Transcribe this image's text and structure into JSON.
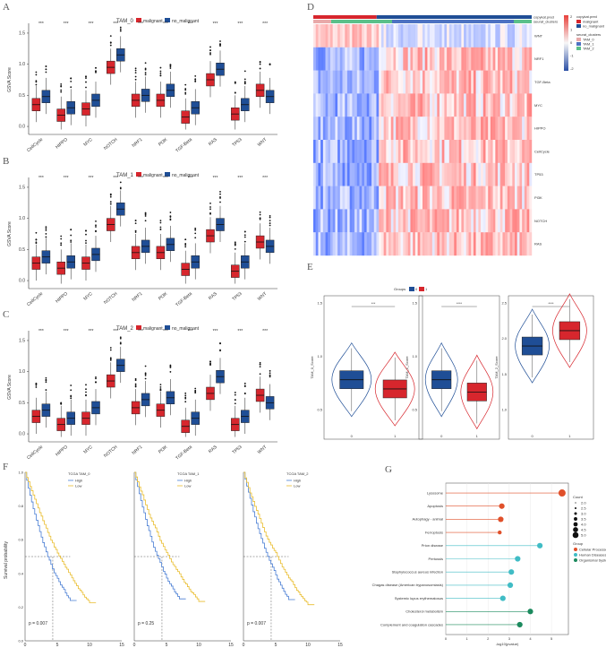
{
  "panels": {
    "A": {
      "letter": "A"
    },
    "B": {
      "letter": "B"
    },
    "C": {
      "letter": "C"
    },
    "D": {
      "letter": "D"
    },
    "E": {
      "letter": "E"
    },
    "F": {
      "letter": "F"
    },
    "G": {
      "letter": "G"
    }
  },
  "colors": {
    "malignant": "#d7262d",
    "no_malignant": "#1f4e96",
    "high": "#4a7ed4",
    "low": "#e9bd2f",
    "cellular": "#e0502a",
    "human_disease": "#40bcc5",
    "organismal": "#1c8a5e"
  },
  "chart_data": [
    {
      "type": "box",
      "id": "A",
      "legend_title": "TAM_0",
      "ylabel": "GSVA Score",
      "ylim": [
        -0.1,
        1.6
      ],
      "yticks": [
        "0.0",
        "0.5",
        "1.0",
        "1.5"
      ],
      "series": [
        {
          "name": "malignant"
        },
        {
          "name": "no_malignant"
        }
      ],
      "categories": [
        "CellCycle",
        "HIPPO",
        "MYC",
        "NOTCH",
        "NRF1",
        "PI3K",
        "TGF-Beta",
        "RAS",
        "TP53",
        "WNT"
      ],
      "signif": "***",
      "medians_malignant": [
        0.35,
        0.18,
        0.28,
        0.95,
        0.42,
        0.42,
        0.15,
        0.75,
        0.2,
        0.58
      ],
      "medians_no_malignant": [
        0.48,
        0.3,
        0.42,
        1.15,
        0.5,
        0.58,
        0.3,
        0.92,
        0.35,
        0.48
      ]
    },
    {
      "type": "box",
      "id": "B",
      "legend_title": "TAM_1",
      "ylabel": "GSVA Score",
      "ylim": [
        -0.1,
        1.6
      ],
      "yticks": [
        "0.0",
        "0.5",
        "1.0",
        "1.5"
      ],
      "series": [
        {
          "name": "malignant"
        },
        {
          "name": "no_malignant"
        }
      ],
      "categories": [
        "CellCycle",
        "HIPPO",
        "MYC",
        "NOTCH",
        "NRF1",
        "PI3K",
        "TGF-Beta",
        "RAS",
        "TP53",
        "WNT"
      ],
      "signif": "***",
      "medians_malignant": [
        0.28,
        0.2,
        0.28,
        0.9,
        0.45,
        0.45,
        0.18,
        0.72,
        0.15,
        0.62
      ],
      "medians_no_malignant": [
        0.38,
        0.3,
        0.42,
        1.15,
        0.55,
        0.58,
        0.3,
        0.9,
        0.3,
        0.55
      ]
    },
    {
      "type": "box",
      "id": "C",
      "legend_title": "TAM_2",
      "ylabel": "GSVA Score",
      "ylim": [
        -0.1,
        1.6
      ],
      "yticks": [
        "0.0",
        "0.5",
        "1.0",
        "1.5"
      ],
      "series": [
        {
          "name": "malignant"
        },
        {
          "name": "no_malignant"
        }
      ],
      "categories": [
        "CellCycle",
        "HIPPO",
        "MYC",
        "NOTCH",
        "NRF1",
        "PI3K",
        "TGF-Beta",
        "RAS",
        "TP53",
        "WNT"
      ],
      "signif": "***",
      "medians_malignant": [
        0.28,
        0.15,
        0.25,
        0.85,
        0.42,
        0.38,
        0.12,
        0.65,
        0.15,
        0.62
      ],
      "medians_no_malignant": [
        0.38,
        0.25,
        0.42,
        1.1,
        0.55,
        0.58,
        0.25,
        0.92,
        0.28,
        0.5
      ]
    },
    {
      "type": "heatmap",
      "id": "D",
      "rows": [
        "WNT",
        "NRF1",
        "TGF-Beta",
        "MYC",
        "HIPPO",
        "CellCycle",
        "TP53",
        "PI3K",
        "NOTCH",
        "RAS"
      ],
      "annotations": [
        "copykat.pred",
        "seurat_clusters"
      ],
      "legend": {
        "scale_title": "",
        "scale_ticks": [
          "2",
          "1",
          "0",
          "-1",
          "-2"
        ],
        "copykat_title": "copykat.pred",
        "copykat_items": [
          "malignant",
          "no_malignant"
        ],
        "cluster_title": "seurat_clusters",
        "cluster_items": [
          "TAM_0",
          "TAM_1",
          "TAM_2"
        ]
      }
    },
    {
      "type": "violin",
      "id": "E",
      "legend_title": "Groups",
      "groups": [
        "0",
        "1"
      ],
      "plots": [
        {
          "ylabel": "TAM_0_Score",
          "signif": "***",
          "yticks": [
            "1.5",
            "1.0",
            "0.5"
          ],
          "median0": 0.95,
          "median1": 0.8
        },
        {
          "ylabel": "TAM_1_Score",
          "signif": "****",
          "yticks": [
            "1.5",
            "1.0",
            "0.5"
          ],
          "median0": 0.95,
          "median1": 0.75
        },
        {
          "ylabel": "TAM_2_Score",
          "signif": "****",
          "yticks": [
            "2.5",
            "2.0",
            "1.5",
            "1.0"
          ],
          "median0": 1.5,
          "median1": 1.75
        }
      ]
    },
    {
      "type": "line",
      "id": "F",
      "ylabel": "Survival probability",
      "xticks": [
        "0",
        "5",
        "10",
        "15"
      ],
      "yticks": [
        "0.0",
        "0.2",
        "0.4",
        "0.6",
        "0.8",
        "1.0"
      ],
      "plots": [
        {
          "title": "TCGA TAM_0",
          "pvalue": "p = 0.007",
          "legend": [
            "High",
            "Low"
          ]
        },
        {
          "title": "TCGA TAM_1",
          "pvalue": "p = 0.25",
          "legend": [
            "High",
            "Low"
          ]
        },
        {
          "title": "TCGA TAM_2",
          "pvalue": "p = 0.007",
          "legend": [
            "High",
            "Low"
          ]
        }
      ]
    },
    {
      "type": "scatter",
      "id": "G",
      "xlabel": "-log10(pvalue)",
      "xticks": [
        "0",
        "1",
        "2",
        "3",
        "4",
        "5"
      ],
      "xlim": [
        0,
        5.8
      ],
      "categories": [
        "Lysosome",
        "Apoptosis",
        "Autophagy - animal",
        "Ferroptosis",
        "Prion disease",
        "Pertussis",
        "Staphylococcus aureus infection",
        "Chagas disease (American trypanosomiasis)",
        "Systemic lupus erythematosus",
        "Cholesterol metabolism",
        "Complement and coagulation cascades"
      ],
      "values": [
        5.5,
        2.65,
        2.6,
        2.55,
        4.45,
        3.4,
        3.1,
        3.05,
        2.7,
        4.0,
        3.5
      ],
      "counts": [
        3,
        2,
        2,
        1,
        2,
        2,
        2,
        2,
        2,
        2,
        2
      ],
      "groups": [
        "Cellular Processes",
        "Cellular Processes",
        "Cellular Processes",
        "Cellular Processes",
        "Human Diseases",
        "Human Diseases",
        "Human Diseases",
        "Human Diseases",
        "Human Diseases",
        "Organismal Systems",
        "Organismal Systems"
      ],
      "count_legend_title": "Count",
      "count_ticks": [
        "2.0",
        "2.5",
        "3.0",
        "3.5",
        "4.0",
        "4.5",
        "5.0"
      ],
      "group_legend_title": "Group",
      "group_items": [
        "Cellular Processes",
        "Human Diseases",
        "Organismal Systems"
      ]
    }
  ]
}
